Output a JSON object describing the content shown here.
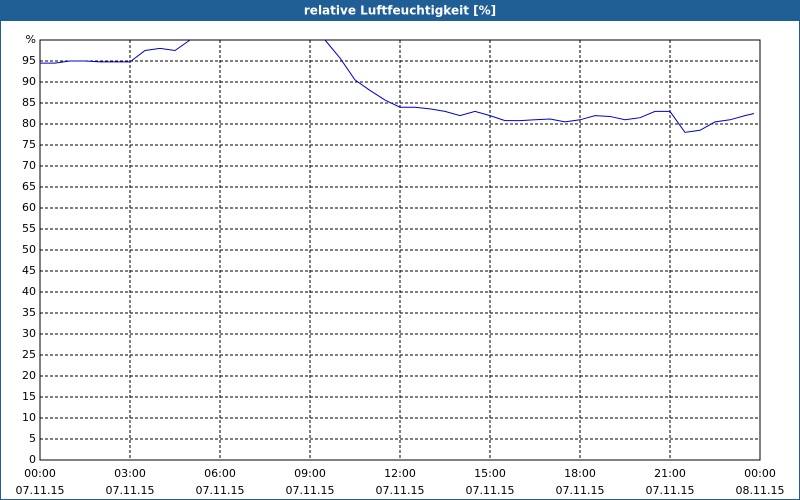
{
  "chart_data": {
    "type": "line",
    "title": "relative Luftfeuchtigkeit [%]",
    "x": [
      0,
      0.5,
      1,
      1.5,
      2,
      2.5,
      3,
      3.5,
      4,
      4.5,
      5,
      5.5,
      6,
      6.5,
      7,
      7.5,
      8,
      8.5,
      9,
      9.5,
      10,
      10.5,
      11,
      11.5,
      12,
      12.5,
      13,
      13.5,
      14,
      14.5,
      15,
      15.5,
      16,
      16.5,
      17,
      17.5,
      18,
      18.5,
      19,
      19.5,
      20,
      20.5,
      21,
      21.5,
      22,
      22.5,
      23,
      23.5,
      23.8
    ],
    "series": [
      {
        "color": "#0000cc",
        "values": [
          94.5,
          94.5,
          95,
          95,
          94.8,
          94.8,
          94.8,
          97.5,
          98,
          97.5,
          100,
          null,
          null,
          null,
          null,
          null,
          null,
          null,
          null,
          100,
          95.7,
          90.5,
          88,
          85.7,
          84,
          84,
          83.6,
          83,
          82,
          83,
          82,
          80.8,
          80.8,
          81,
          81.2,
          80.5,
          81,
          82,
          81.8,
          81,
          81.5,
          83,
          83,
          78,
          78.5,
          80.5,
          81,
          82,
          82.5
        ]
      }
    ],
    "xlim": [
      0,
      24
    ],
    "xticks": [
      {
        "value": 0,
        "label": [
          "00:00",
          "07.11.15"
        ]
      },
      {
        "value": 3,
        "label": [
          "03:00",
          "07.11.15"
        ]
      },
      {
        "value": 6,
        "label": [
          "06:00",
          "07.11.15"
        ]
      },
      {
        "value": 9,
        "label": [
          "09:00",
          "07.11.15"
        ]
      },
      {
        "value": 12,
        "label": [
          "12:00",
          "07.11.15"
        ]
      },
      {
        "value": 15,
        "label": [
          "15:00",
          "07.11.15"
        ]
      },
      {
        "value": 18,
        "label": [
          "18:00",
          "07.11.15"
        ]
      },
      {
        "value": 21,
        "label": [
          "21:00",
          "07.11.15"
        ]
      },
      {
        "value": 24,
        "label": [
          "00:00",
          "08.11.15"
        ]
      }
    ],
    "ylim": [
      0,
      100
    ],
    "yticks": [
      0,
      5,
      10,
      15,
      20,
      25,
      30,
      35,
      40,
      45,
      50,
      55,
      60,
      65,
      70,
      75,
      80,
      85,
      90,
      95,
      {
        "value": 100,
        "label": "%"
      }
    ],
    "grid": true
  }
}
